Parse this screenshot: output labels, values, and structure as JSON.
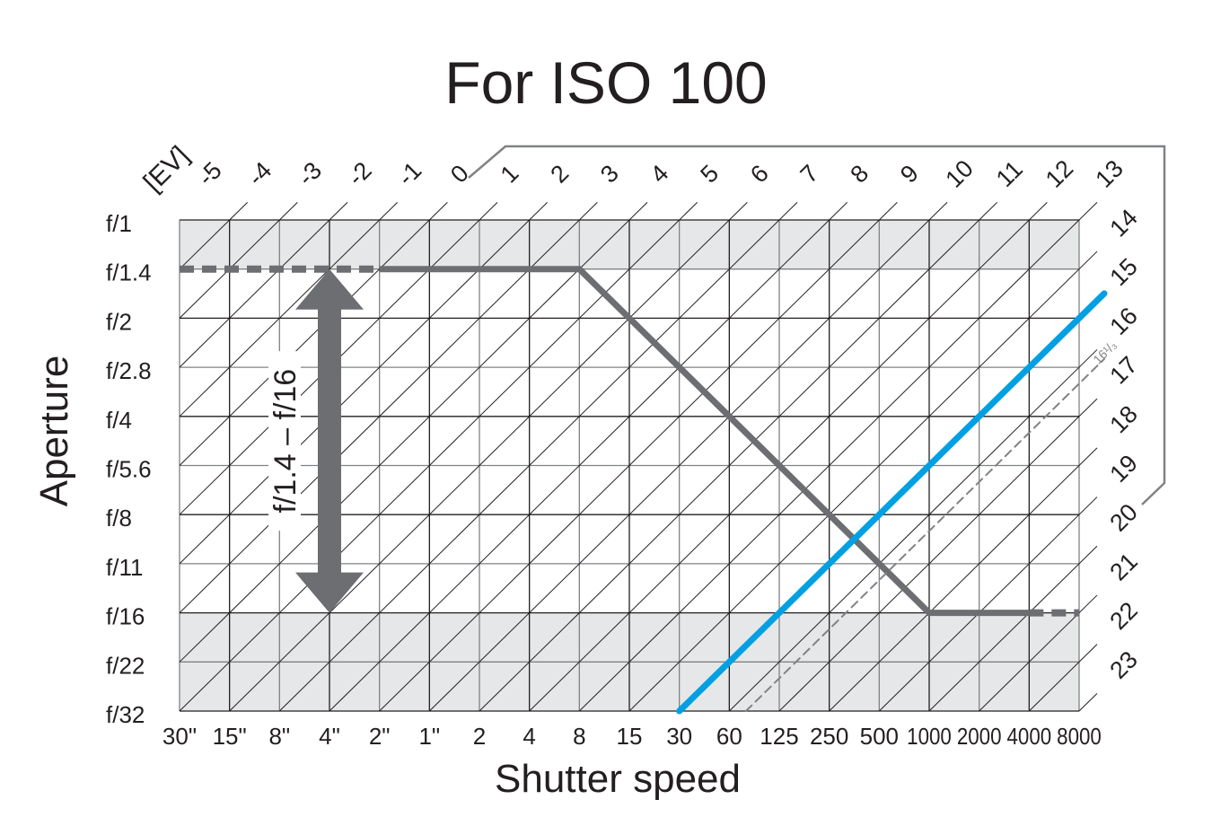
{
  "chart_data": {
    "type": "line",
    "title": "For ISO 100",
    "xlabel": "Shutter speed",
    "ylabel": "Aperture",
    "ev_label": "[EV]",
    "x_ticks": [
      "30\"",
      "15\"",
      "8\"",
      "4\"",
      "2\"",
      "1\"",
      "2",
      "4",
      "8",
      "15",
      "30",
      "60",
      "125",
      "250",
      "500",
      "1000",
      "2000",
      "4000",
      "8000"
    ],
    "y_ticks": [
      "f/1",
      "f/1.4",
      "f/2",
      "f/2.8",
      "f/4",
      "f/5.6",
      "f/8",
      "f/11",
      "f/16",
      "f/22",
      "f/32"
    ],
    "ev_values": [
      -5,
      -4,
      -3,
      -2,
      -1,
      0,
      1,
      2,
      3,
      4,
      5,
      6,
      7,
      8,
      9,
      10,
      11,
      12,
      13,
      14,
      15,
      16,
      17,
      18,
      19,
      20,
      21,
      22,
      23
    ],
    "shaded_aperture_ranges": [
      [
        "f/1",
        "f/1.4"
      ],
      [
        "f/16",
        "f/32"
      ]
    ],
    "range_arrow": {
      "label": "f/1.4 – f/16",
      "from": "f/1.4",
      "to": "f/16",
      "at_shutter": "4\""
    },
    "series": [
      {
        "name": "program-line",
        "color": "#6d6e71",
        "segments": [
          {
            "style": "dashed",
            "points": [
              [
                "30\"",
                "f/1.4"
              ],
              [
                "2\"",
                "f/1.4"
              ]
            ]
          },
          {
            "style": "solid",
            "points": [
              [
                "2\"",
                "f/1.4"
              ],
              [
                "8",
                "f/1.4"
              ],
              [
                "1000",
                "f/16"
              ],
              [
                "4000",
                "f/16"
              ]
            ]
          },
          {
            "style": "dashed",
            "points": [
              [
                "4000",
                "f/16"
              ],
              [
                "8000",
                "f/16"
              ]
            ]
          }
        ]
      },
      {
        "name": "ev-15-limit",
        "color": "#00a0e3",
        "ev": 15,
        "style": "solid"
      },
      {
        "name": "ev-16-1/3-limit",
        "color": "#808285",
        "ev": 16.333,
        "style": "dashed",
        "label": "16¹/₃"
      }
    ]
  }
}
